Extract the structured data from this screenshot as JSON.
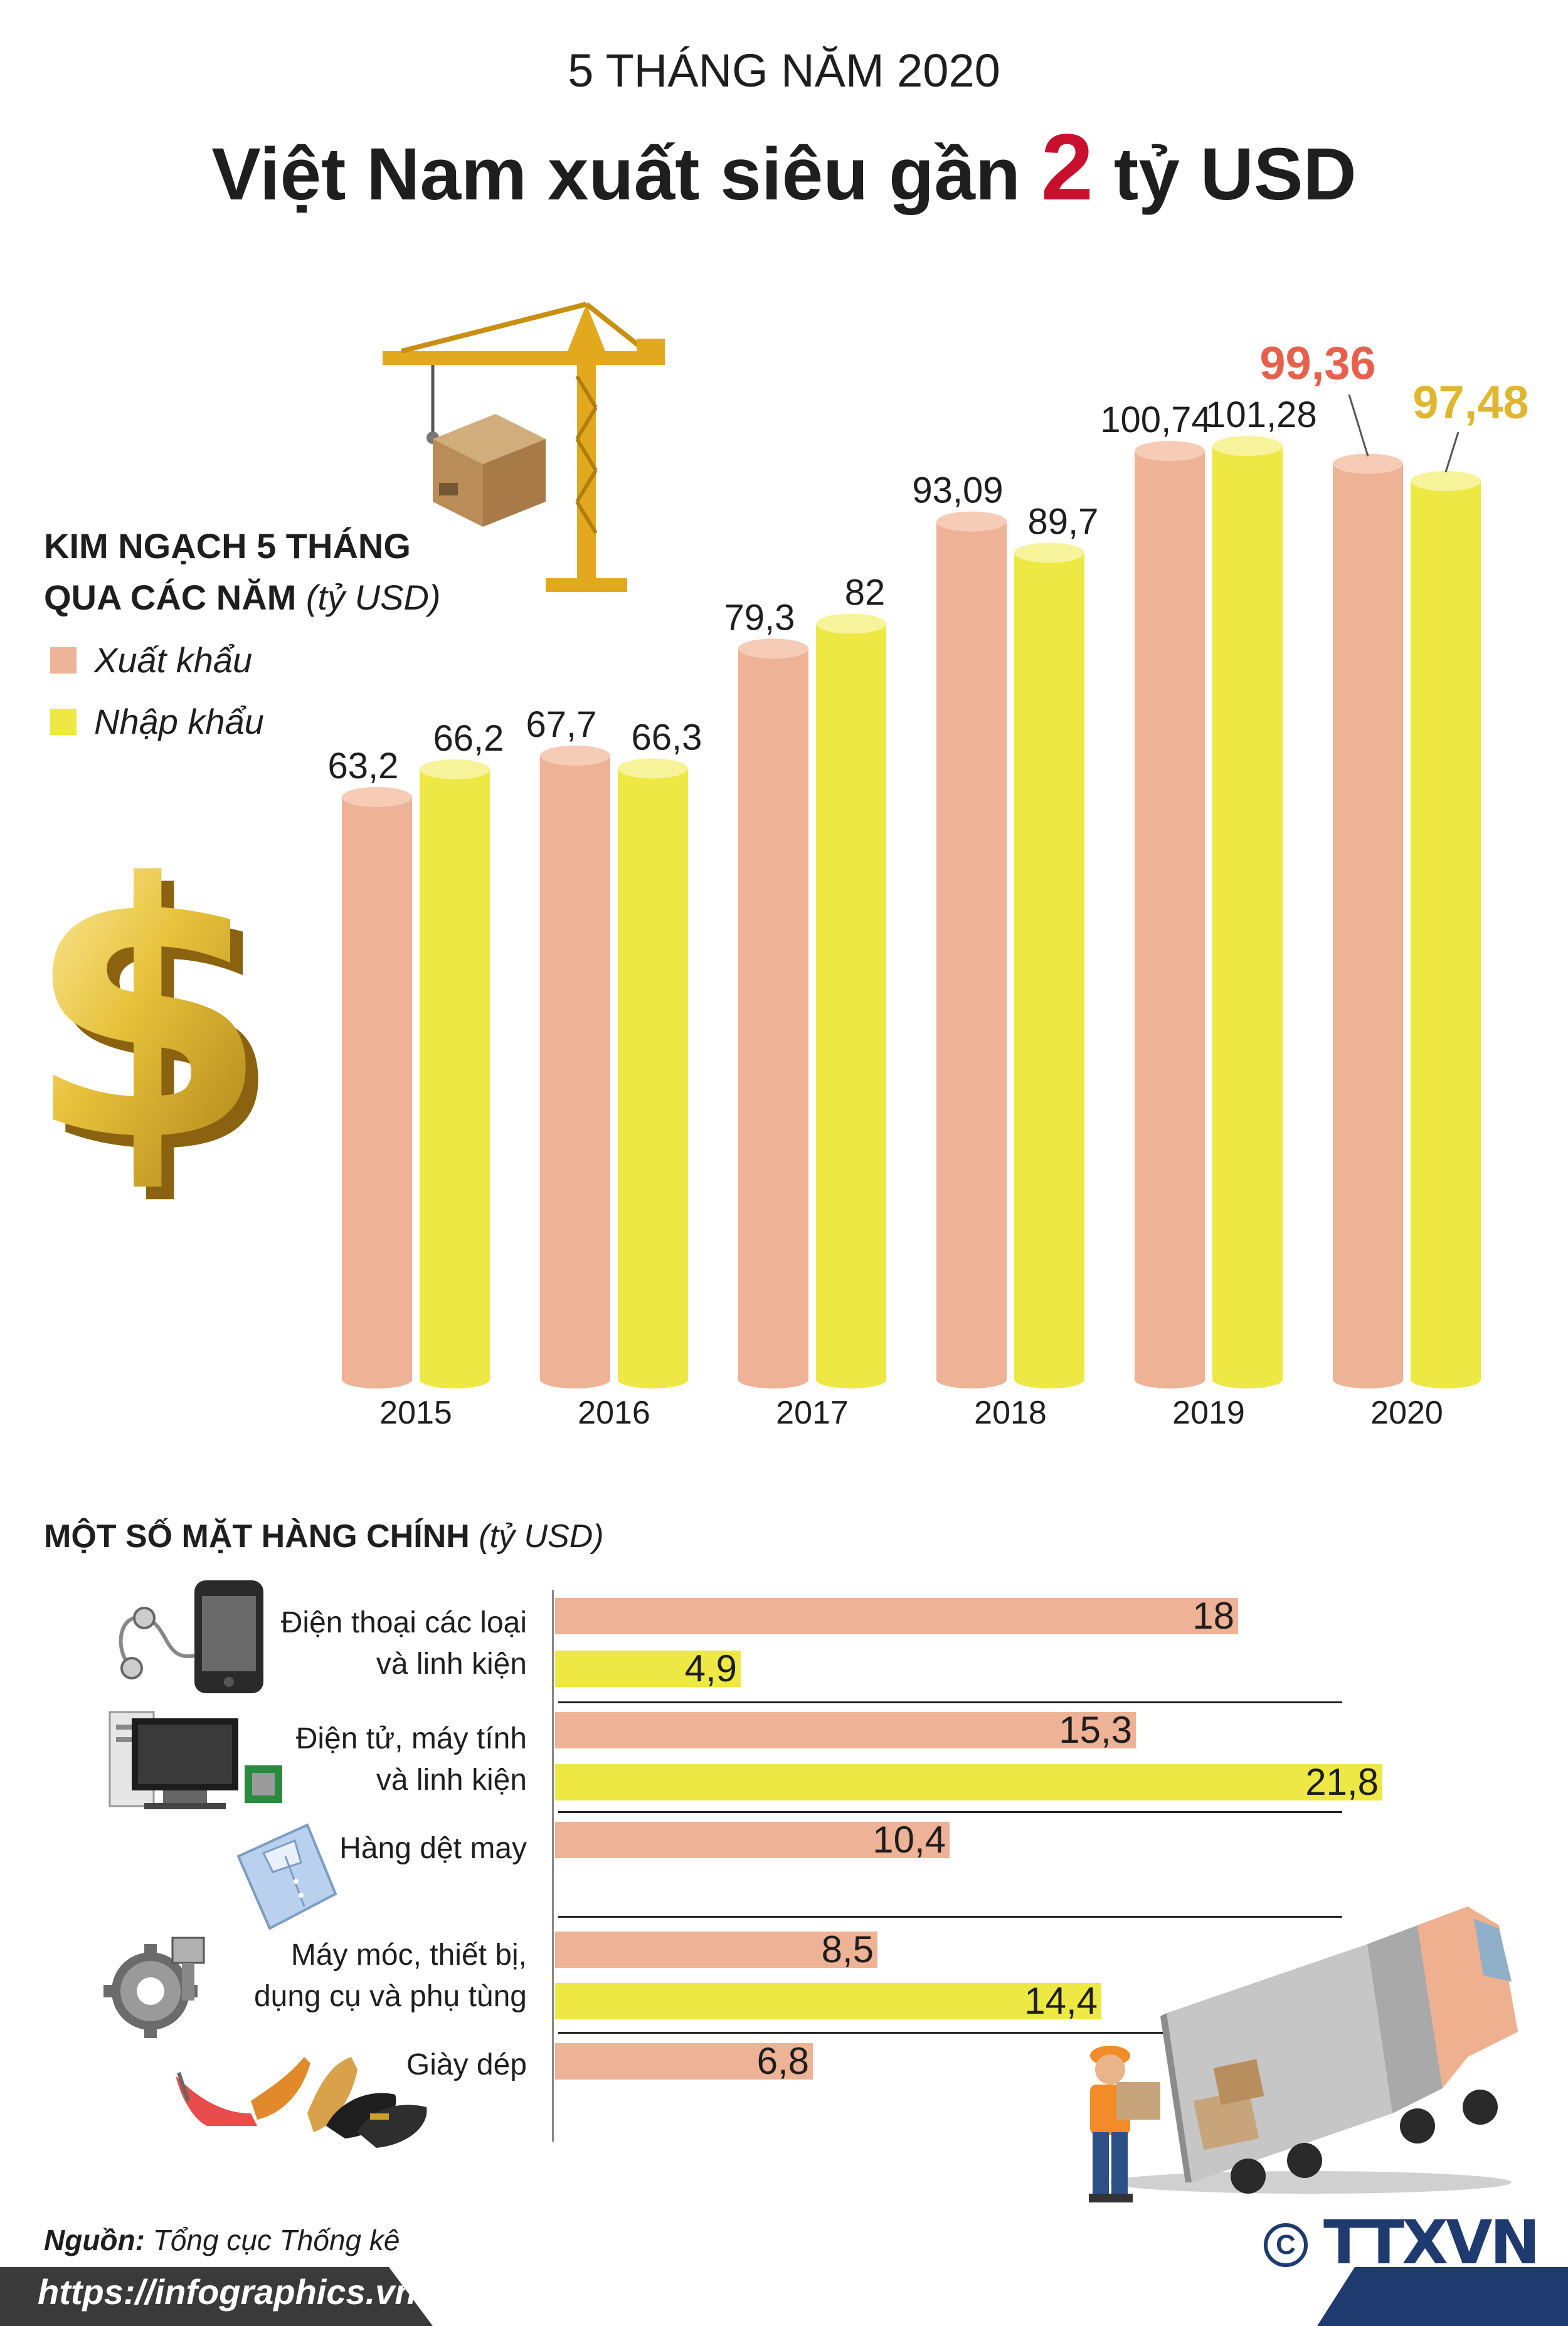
{
  "header": {
    "subtitle": "5 THÁNG NĂM 2020",
    "title_pre": "Việt Nam xuất siêu gần ",
    "title_highlight": "2",
    "title_post": " tỷ USD"
  },
  "legend": {
    "title_line1": "KIM NGẠCH 5 THÁNG",
    "title_line2": "QUA CÁC NĂM",
    "unit": "(tỷ USD)",
    "export_label": "Xuất khẩu",
    "import_label": "Nhập khẩu"
  },
  "colors": {
    "export": "#EEB296",
    "export_top": "#F6CCB6",
    "import": "#EDE844",
    "import_top": "#F6F39A",
    "highlight_export": "#E8604C",
    "highlight_import": "#E0B630",
    "highlight_red": "#c8102e",
    "footer_dark": "#3a3a3a",
    "footer_blue": "#1e3a6e"
  },
  "chart_data": [
    {
      "type": "bar",
      "title": "KIM NGẠCH 5 THÁNG QUA CÁC NĂM (tỷ USD)",
      "categories": [
        "2015",
        "2016",
        "2017",
        "2018",
        "2019",
        "2020"
      ],
      "series": [
        {
          "name": "Xuất khẩu",
          "values": [
            63.2,
            67.7,
            79.3,
            93.09,
            100.74,
            99.36
          ],
          "labels": [
            "63,2",
            "67,7",
            "79,3",
            "93,09",
            "100,74",
            "99,36"
          ]
        },
        {
          "name": "Nhập khẩu",
          "values": [
            66.2,
            66.3,
            82,
            89.7,
            101.28,
            97.48
          ],
          "labels": [
            "66,2",
            "66,3",
            "82",
            "89,7",
            "101,28",
            "97,48"
          ]
        }
      ],
      "ylim": [
        0,
        110
      ],
      "xlabel": "",
      "ylabel": ""
    },
    {
      "type": "bar",
      "orientation": "horizontal",
      "title": "MỘT SỐ MẶT HÀNG CHÍNH (tỷ USD)",
      "categories": [
        "Điện thoại các loại và linh kiện",
        "Điện tử, máy tính và linh kiện",
        "Hàng dệt may",
        "Máy móc, thiết bị, dụng cụ và phụ tùng",
        "Giày dép"
      ],
      "series": [
        {
          "name": "Xuất khẩu",
          "values": [
            18,
            15.3,
            10.4,
            8.5,
            6.8
          ],
          "labels": [
            "18",
            "15,3",
            "10,4",
            "8,5",
            "6,8"
          ]
        },
        {
          "name": "Nhập khẩu",
          "values": [
            4.9,
            21.8,
            null,
            14.4,
            null
          ],
          "labels": [
            "4,9",
            "21,8",
            "",
            "14,4",
            ""
          ]
        }
      ],
      "xlim": [
        0,
        21.8
      ]
    }
  ],
  "categories_section": {
    "title": "MỘT SỐ MẶT HÀNG CHÍNH",
    "unit": "(tỷ USD)",
    "items": [
      {
        "line1": "Điện thoại các loại",
        "line2": "và linh kiện",
        "icon": "phone-icon"
      },
      {
        "line1": "Điện tử, máy tính",
        "line2": "và linh kiện",
        "icon": "computer-icon"
      },
      {
        "line1": "Hàng dệt may",
        "line2": "",
        "icon": "shirt-icon"
      },
      {
        "line1": "Máy móc, thiết bị,",
        "line2": "dụng cụ và phụ tùng",
        "icon": "gear-icon"
      },
      {
        "line1": "Giày dép",
        "line2": "",
        "icon": "shoes-icon"
      }
    ]
  },
  "footer": {
    "source_label": "Nguồn:",
    "source_value": "Tổng cục Thống kê",
    "link": "https://infographics.vn",
    "copyright": "C",
    "agency": "TTXVN"
  }
}
